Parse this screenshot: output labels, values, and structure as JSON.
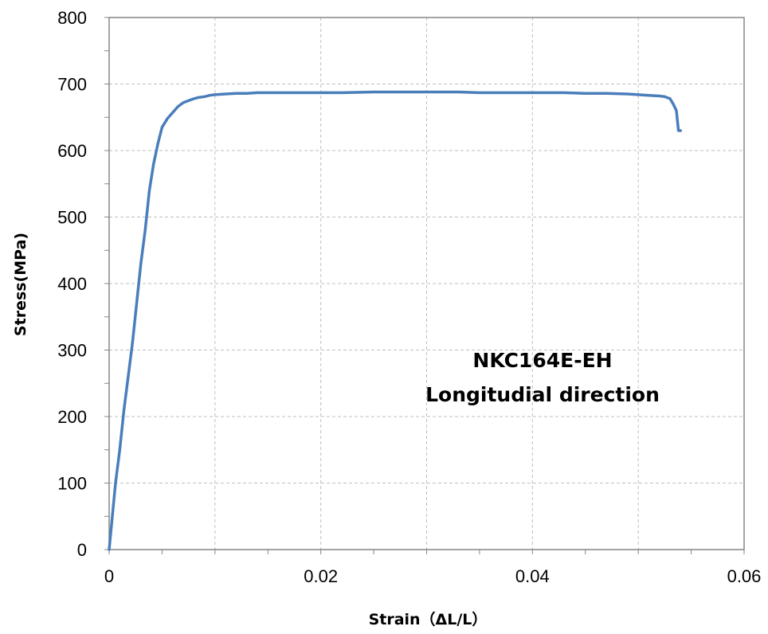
{
  "chart_data": {
    "type": "line",
    "xlabel": "Strain（ΔL/L）",
    "ylabel": "Stress(MPa)",
    "xlim": [
      0,
      0.06
    ],
    "ylim": [
      0,
      800
    ],
    "x_ticks": [
      0,
      0.02,
      0.04,
      0.06
    ],
    "x_tick_labels": [
      "0",
      "0.02",
      "0.04",
      "0.06"
    ],
    "y_ticks": [
      0,
      100,
      200,
      300,
      400,
      500,
      600,
      700,
      800
    ],
    "y_tick_labels": [
      "0",
      "100",
      "200",
      "300",
      "400",
      "500",
      "600",
      "700",
      "800"
    ],
    "grid": true,
    "annotation": [
      "NKC164E-EH",
      "Longitudial direction"
    ],
    "series": [
      {
        "color": "#4a7ebb",
        "x": [
          0,
          0.0003,
          0.0006,
          0.001,
          0.0014,
          0.0018,
          0.0022,
          0.0026,
          0.003,
          0.0034,
          0.0038,
          0.0042,
          0.0046,
          0.005,
          0.0055,
          0.006,
          0.0065,
          0.007,
          0.0075,
          0.008,
          0.0085,
          0.009,
          0.0095,
          0.01,
          0.011,
          0.012,
          0.013,
          0.014,
          0.016,
          0.018,
          0.02,
          0.022,
          0.025,
          0.028,
          0.03,
          0.033,
          0.035,
          0.038,
          0.04,
          0.043,
          0.045,
          0.047,
          0.049,
          0.05,
          0.051,
          0.052,
          0.0525,
          0.053,
          0.0533,
          0.0536,
          0.0537,
          0.0538,
          0.054
        ],
        "y": [
          0,
          50,
          100,
          150,
          210,
          260,
          310,
          370,
          430,
          480,
          540,
          580,
          610,
          635,
          648,
          657,
          666,
          672,
          675,
          678,
          680,
          681,
          683,
          684,
          685,
          686,
          686,
          687,
          687,
          687,
          687,
          687,
          688,
          688,
          688,
          688,
          687,
          687,
          687,
          687,
          686,
          686,
          685,
          684,
          683,
          682,
          681,
          678,
          670,
          660,
          645,
          630,
          630
        ]
      }
    ]
  }
}
